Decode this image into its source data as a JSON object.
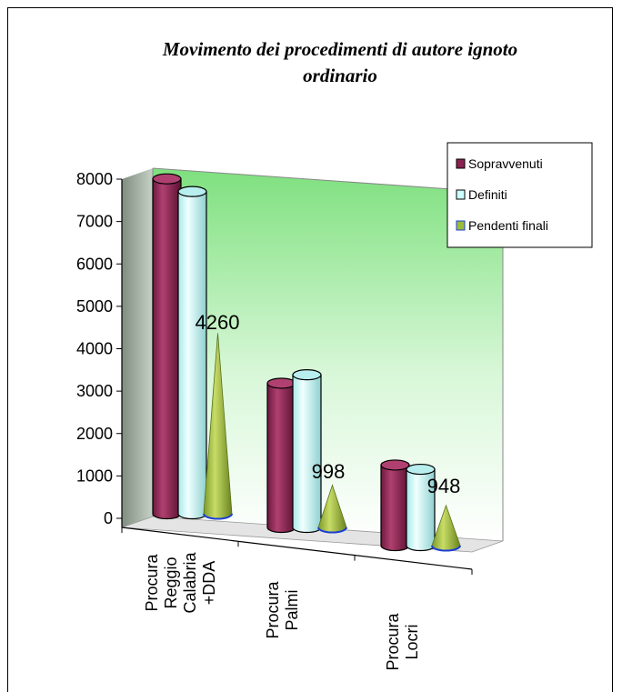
{
  "chart_data": {
    "type": "bar",
    "title": "Movimento dei procedimenti di autore ignoto ordinario",
    "categories": [
      [
        "Procura",
        "Reggio",
        "Calabria",
        "+DDA"
      ],
      [
        "Procura",
        "Palmi"
      ],
      [
        "Procura",
        "Locri"
      ]
    ],
    "series": [
      {
        "name": "Sopravvenuti",
        "values": [
          7900,
          3400,
          1900
        ],
        "shape": "cylinder",
        "color": "#8b2252"
      },
      {
        "name": "Definiti",
        "values": [
          7600,
          3600,
          1800
        ],
        "shape": "cylinder",
        "color": "#ccffff"
      },
      {
        "name": "Pendenti finali",
        "values": [
          4260,
          998,
          948
        ],
        "shape": "cone",
        "color": "#9bbb3b"
      }
    ],
    "data_labels": [
      "4260",
      "998",
      "948"
    ],
    "yticks": [
      "0",
      "1000",
      "2000",
      "3000",
      "4000",
      "5000",
      "6000",
      "7000",
      "8000"
    ],
    "ylim": [
      0,
      8000
    ],
    "legend_position": "right",
    "grid": false
  }
}
